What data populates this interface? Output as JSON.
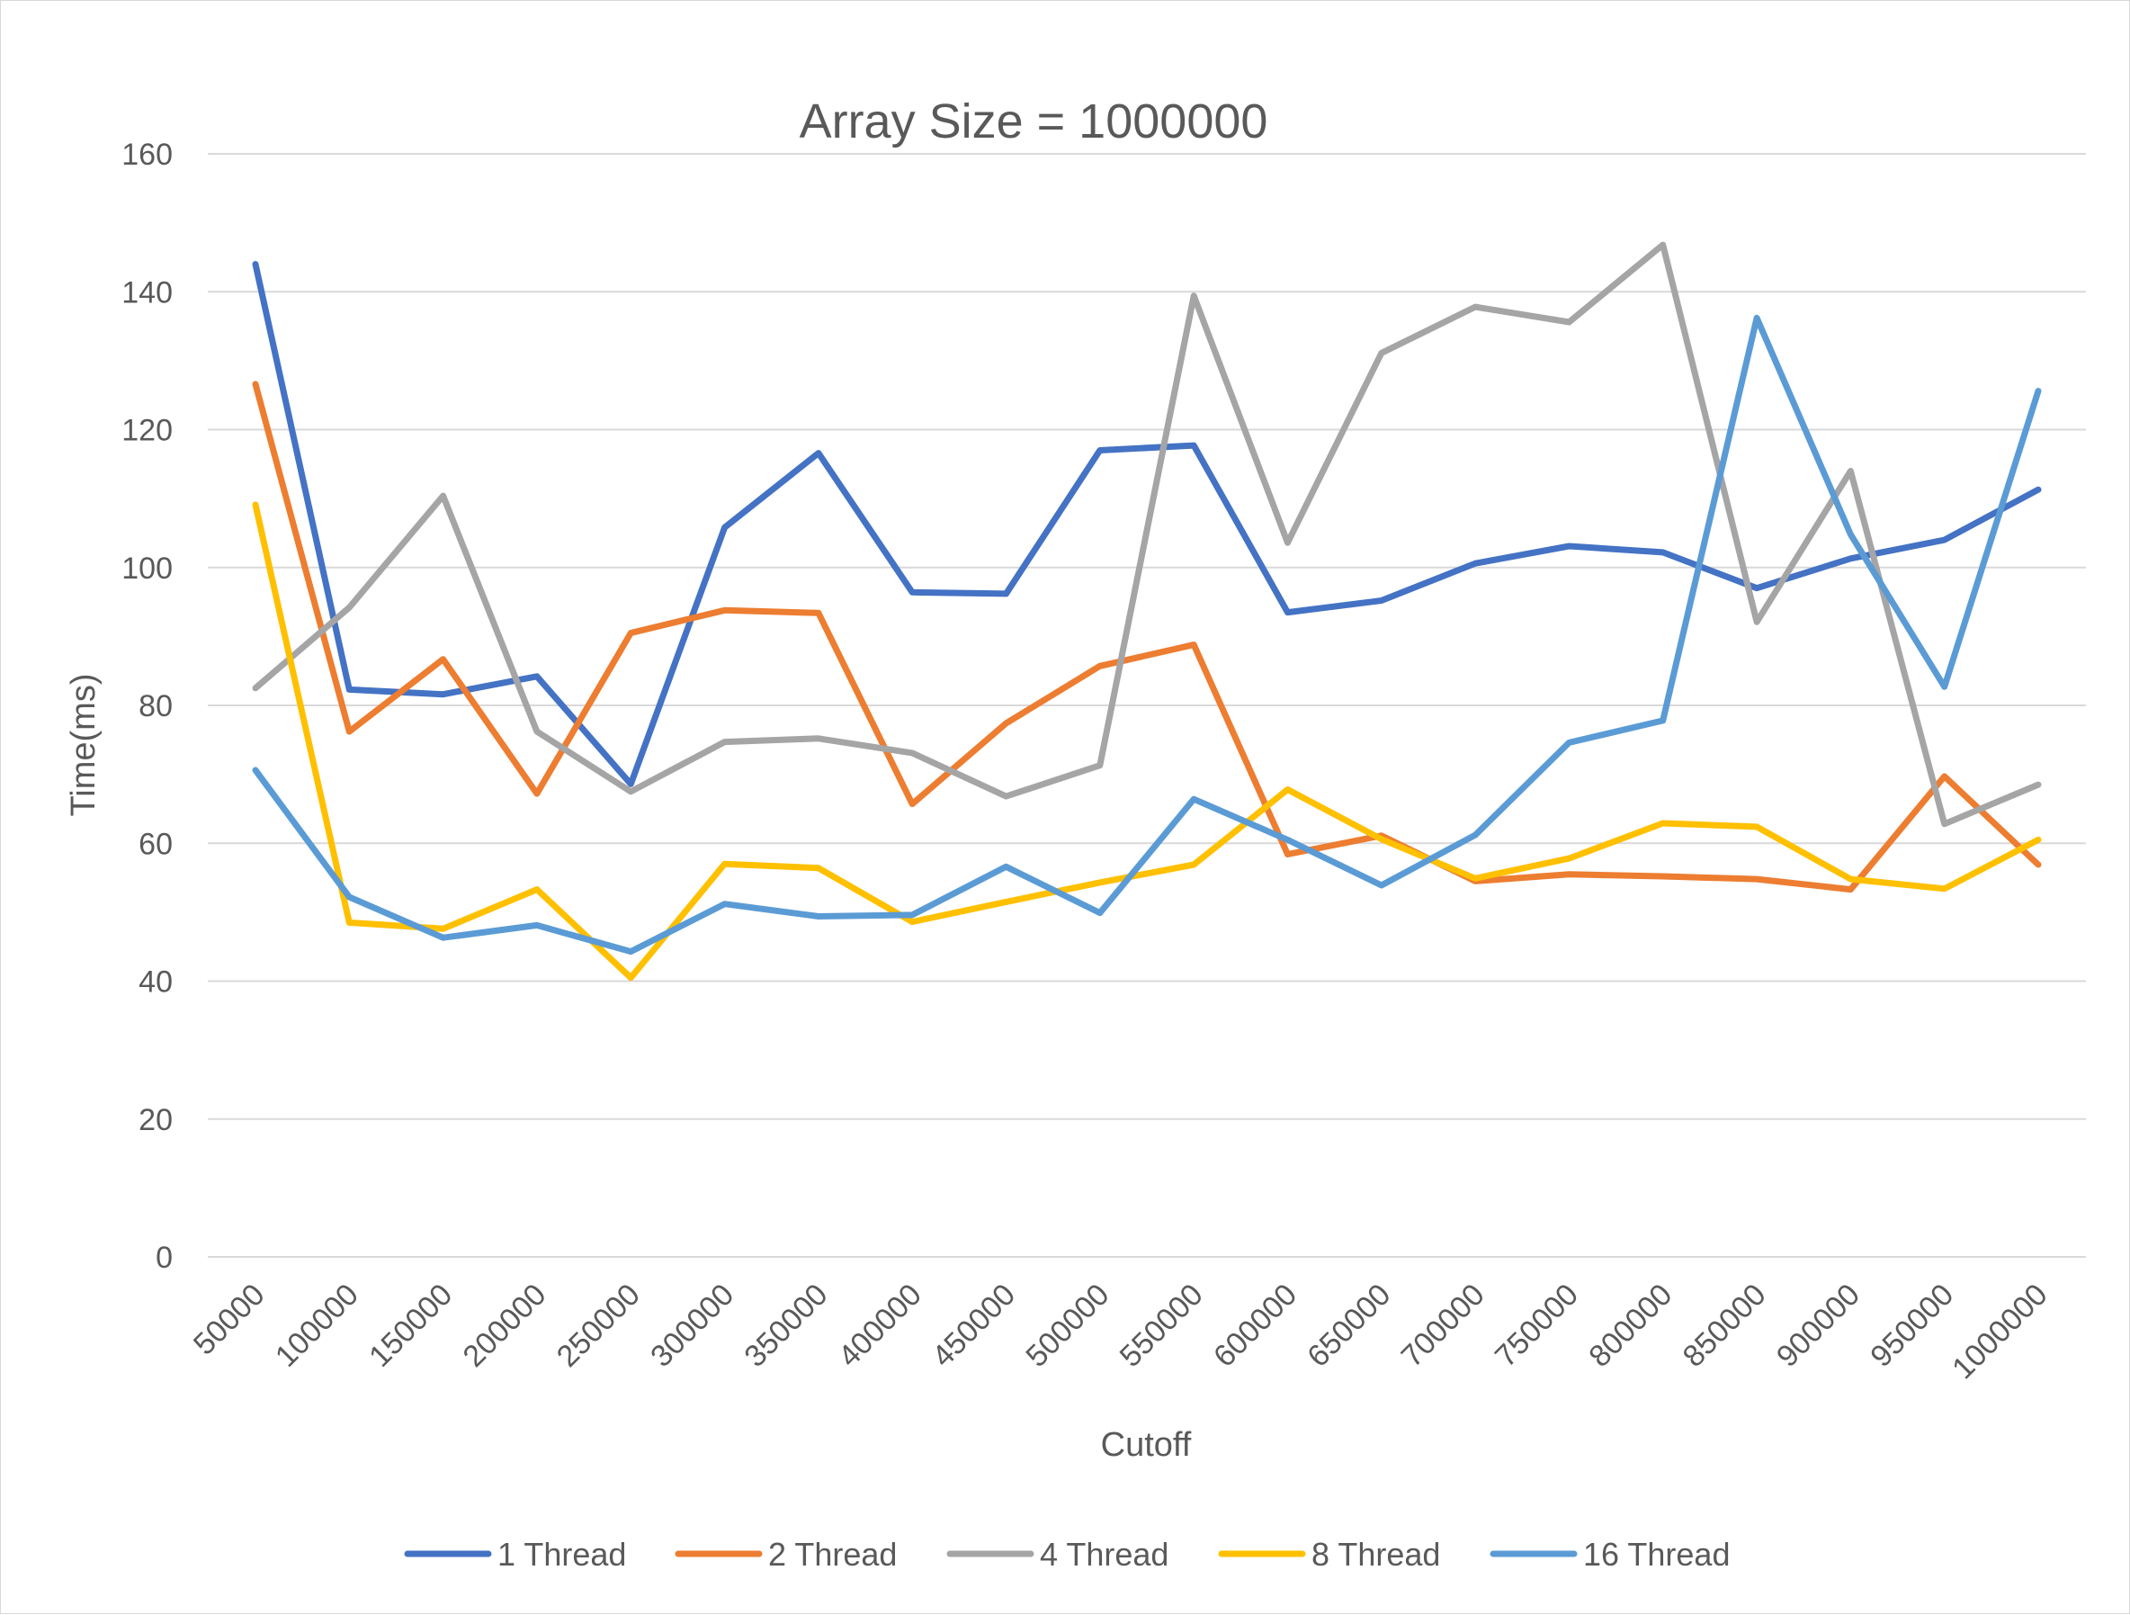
{
  "chart_data": {
    "type": "line",
    "title": "Array Size = 1000000",
    "xlabel": "Cutoff",
    "ylabel": "Time(ms)",
    "ylim": [
      0,
      160
    ],
    "yticks": [
      0,
      20,
      40,
      60,
      80,
      100,
      120,
      140,
      160
    ],
    "grid": true,
    "legend_position": "bottom",
    "categories": [
      "50000",
      "100000",
      "150000",
      "200000",
      "250000",
      "300000",
      "350000",
      "400000",
      "450000",
      "500000",
      "550000",
      "600000",
      "650000",
      "700000",
      "750000",
      "800000",
      "850000",
      "900000",
      "950000",
      "1000000"
    ],
    "series": [
      {
        "name": "1 Thread",
        "color": "#4472c4",
        "values": [
          144,
          82.3,
          81.6,
          84.2,
          68.6,
          105.8,
          116.6,
          96.4,
          96.2,
          117,
          117.7,
          93.5,
          95.2,
          100.6,
          103.1,
          102.2,
          97,
          101.3,
          104,
          111.3
        ]
      },
      {
        "name": "2 Thread",
        "color": "#ed7d31",
        "values": [
          126.6,
          76.2,
          86.7,
          67.2,
          90.5,
          93.8,
          93.4,
          65.7,
          77.4,
          85.7,
          88.8,
          58.4,
          61.1,
          54.5,
          55.5,
          55.2,
          54.8,
          53.3,
          69.7,
          56.9
        ]
      },
      {
        "name": "4 Thread",
        "color": "#a5a5a5",
        "values": [
          82.5,
          94.2,
          110.4,
          76.2,
          67.5,
          74.7,
          75.2,
          73.1,
          66.8,
          71.3,
          139.4,
          103.6,
          131.1,
          137.8,
          135.6,
          146.8,
          92.1,
          114,
          62.8,
          68.5
        ]
      },
      {
        "name": "8 Thread",
        "color": "#ffc000",
        "values": [
          109.1,
          48.5,
          47.6,
          53.3,
          40.5,
          57,
          56.4,
          48.6,
          51.5,
          54.3,
          56.9,
          67.8,
          60.6,
          54.9,
          57.8,
          62.9,
          62.4,
          54.8,
          53.4,
          60.5
        ]
      },
      {
        "name": "16 Thread",
        "color": "#5b9bd5",
        "values": [
          70.6,
          52.2,
          46.3,
          48.1,
          44.3,
          51.2,
          49.4,
          49.6,
          56.6,
          49.9,
          66.4,
          60.5,
          53.9,
          61.2,
          74.6,
          77.8,
          136.2,
          104.8,
          82.7,
          125.6
        ]
      }
    ]
  }
}
